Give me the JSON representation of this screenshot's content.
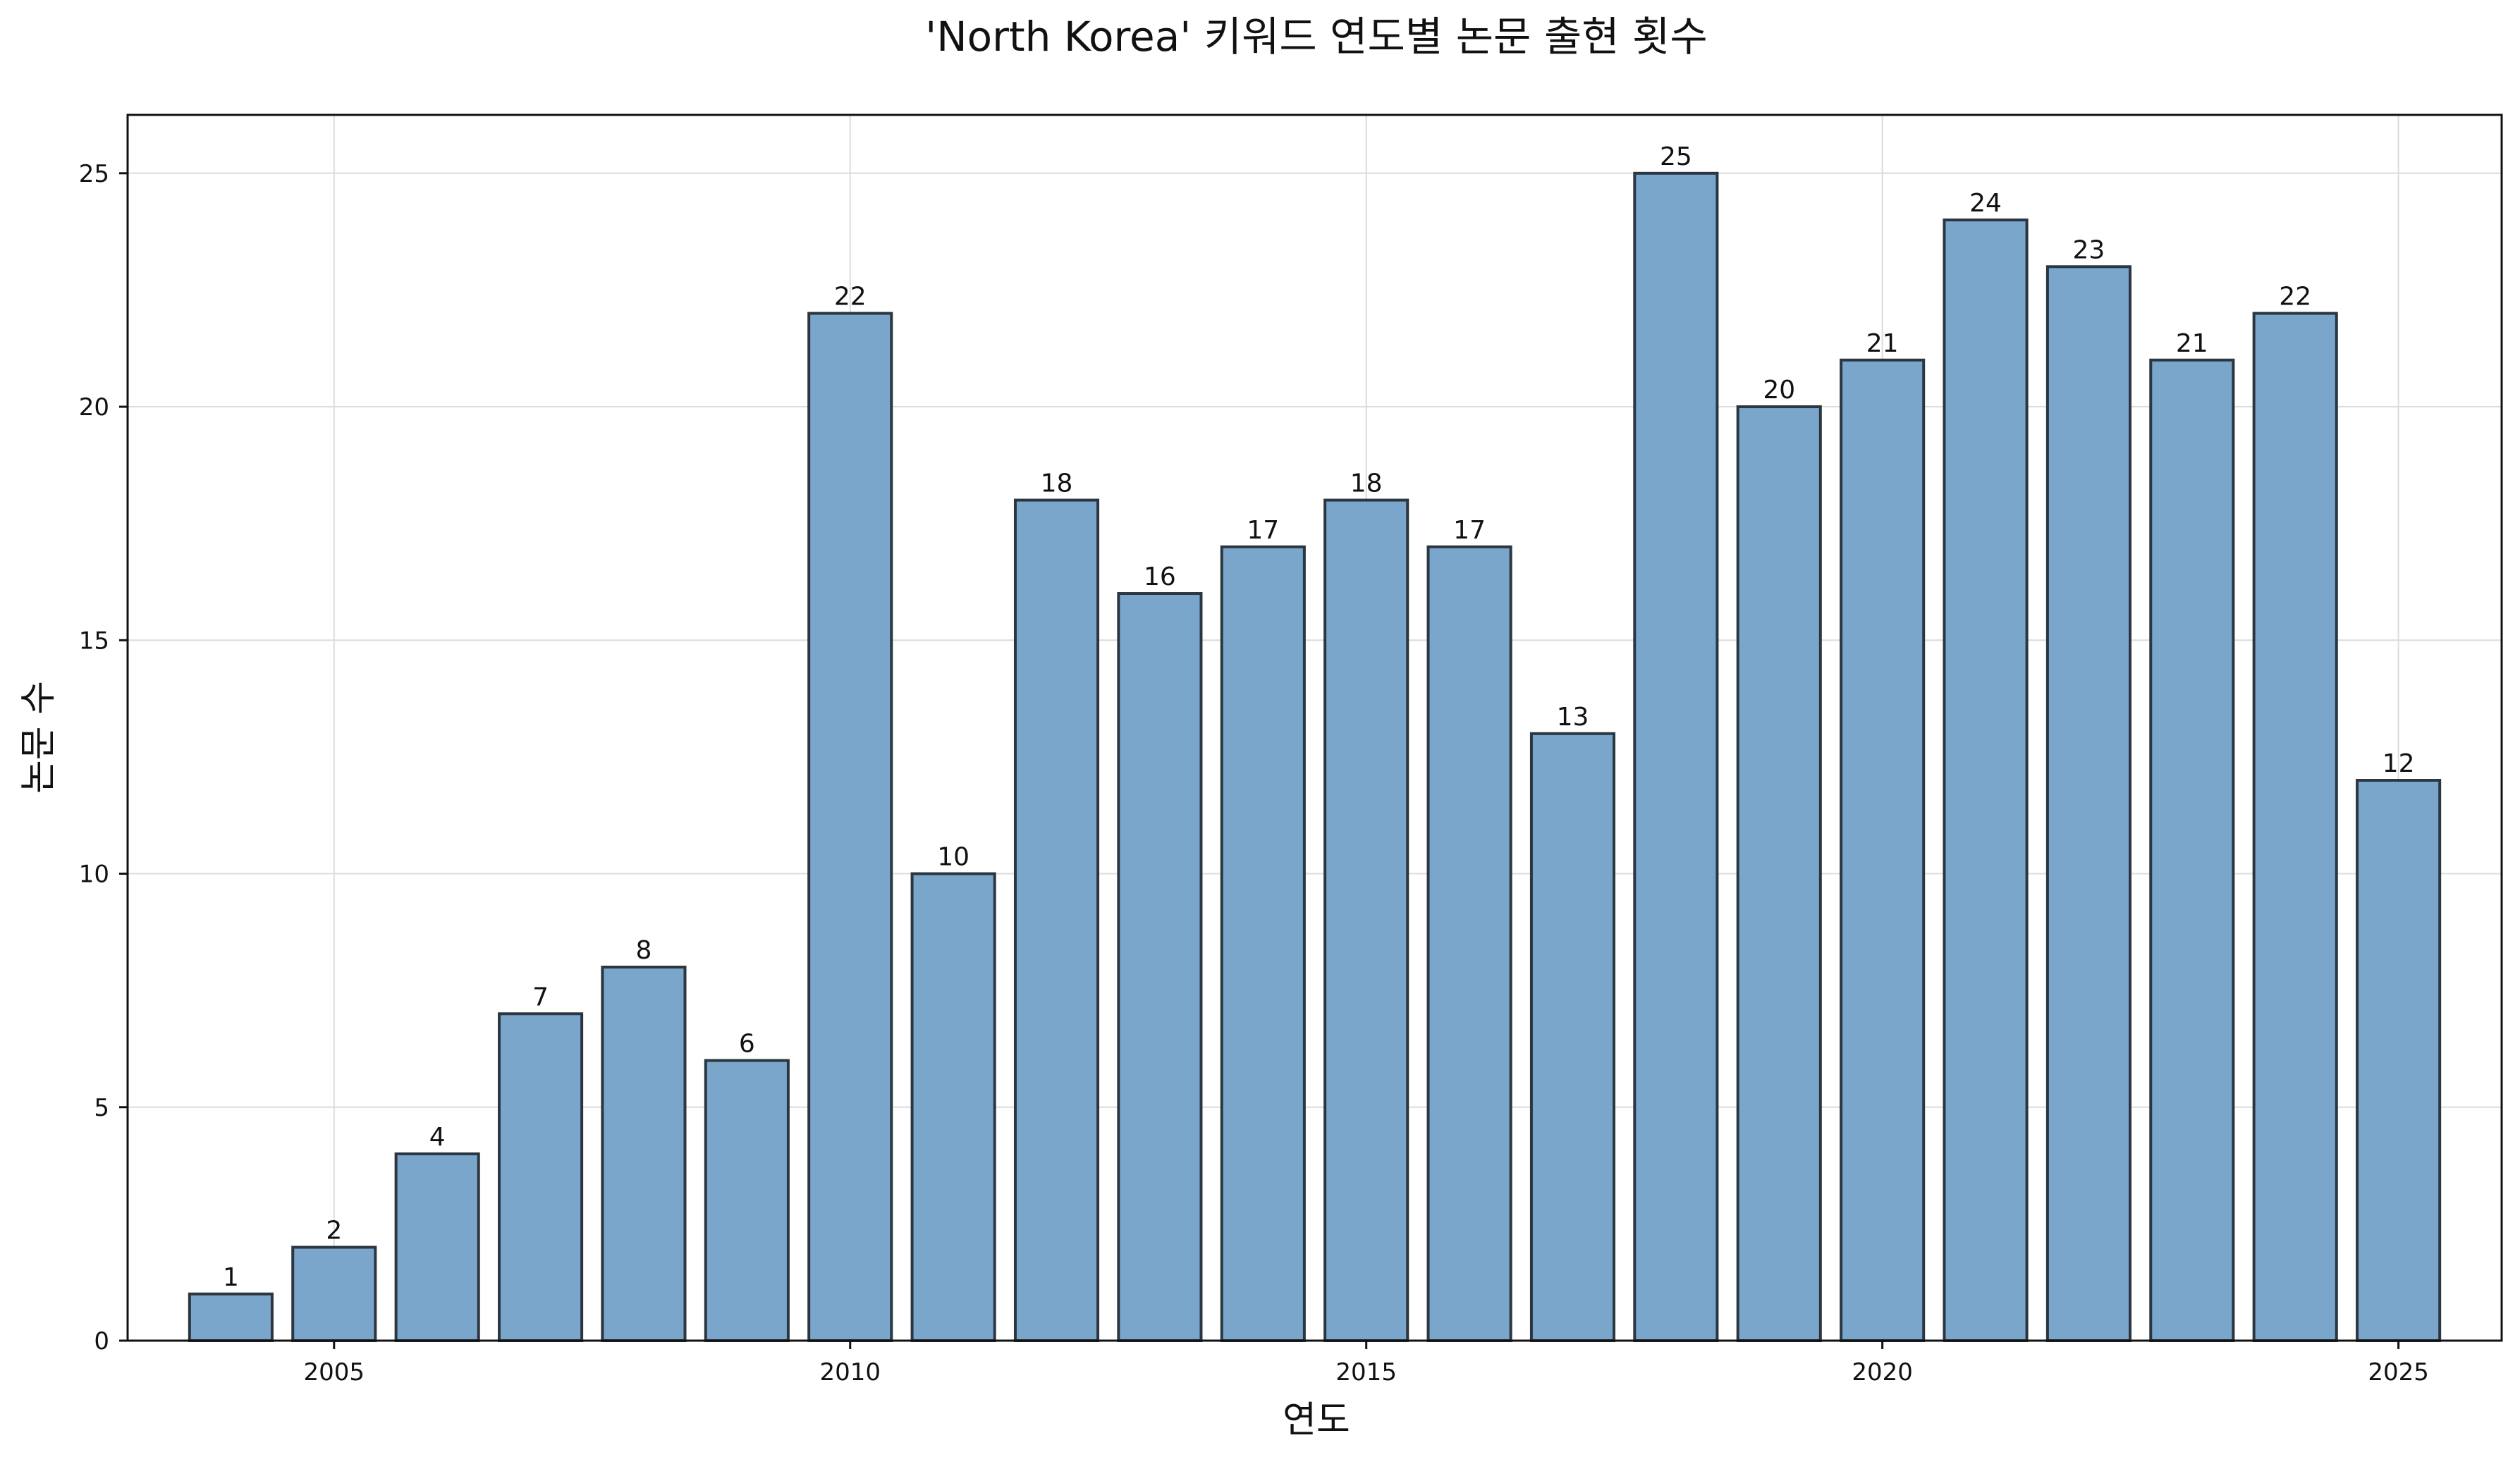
{
  "chart_data": {
    "type": "bar",
    "title": "'North Korea' 키워드 연도별 논문 출현 횟수",
    "xlabel": "연도",
    "ylabel": "논문 수",
    "x": [
      2004,
      2005,
      2006,
      2007,
      2008,
      2009,
      2010,
      2011,
      2012,
      2013,
      2014,
      2015,
      2016,
      2017,
      2018,
      2019,
      2020,
      2021,
      2022,
      2023,
      2024,
      2025
    ],
    "values": [
      1,
      2,
      4,
      7,
      8,
      6,
      22,
      10,
      18,
      16,
      17,
      18,
      17,
      13,
      25,
      20,
      21,
      24,
      23,
      21,
      22,
      12
    ],
    "xlim": [
      2003.0,
      2026.0
    ],
    "ylim": [
      0,
      26.25
    ],
    "xticks": [
      2005,
      2010,
      2015,
      2020,
      2025
    ],
    "yticks": [
      0,
      5,
      10,
      15,
      20,
      25
    ],
    "grid": true,
    "bar_color": "#7aa6cc",
    "edge_color": "#2b3640",
    "data_labels": true
  }
}
